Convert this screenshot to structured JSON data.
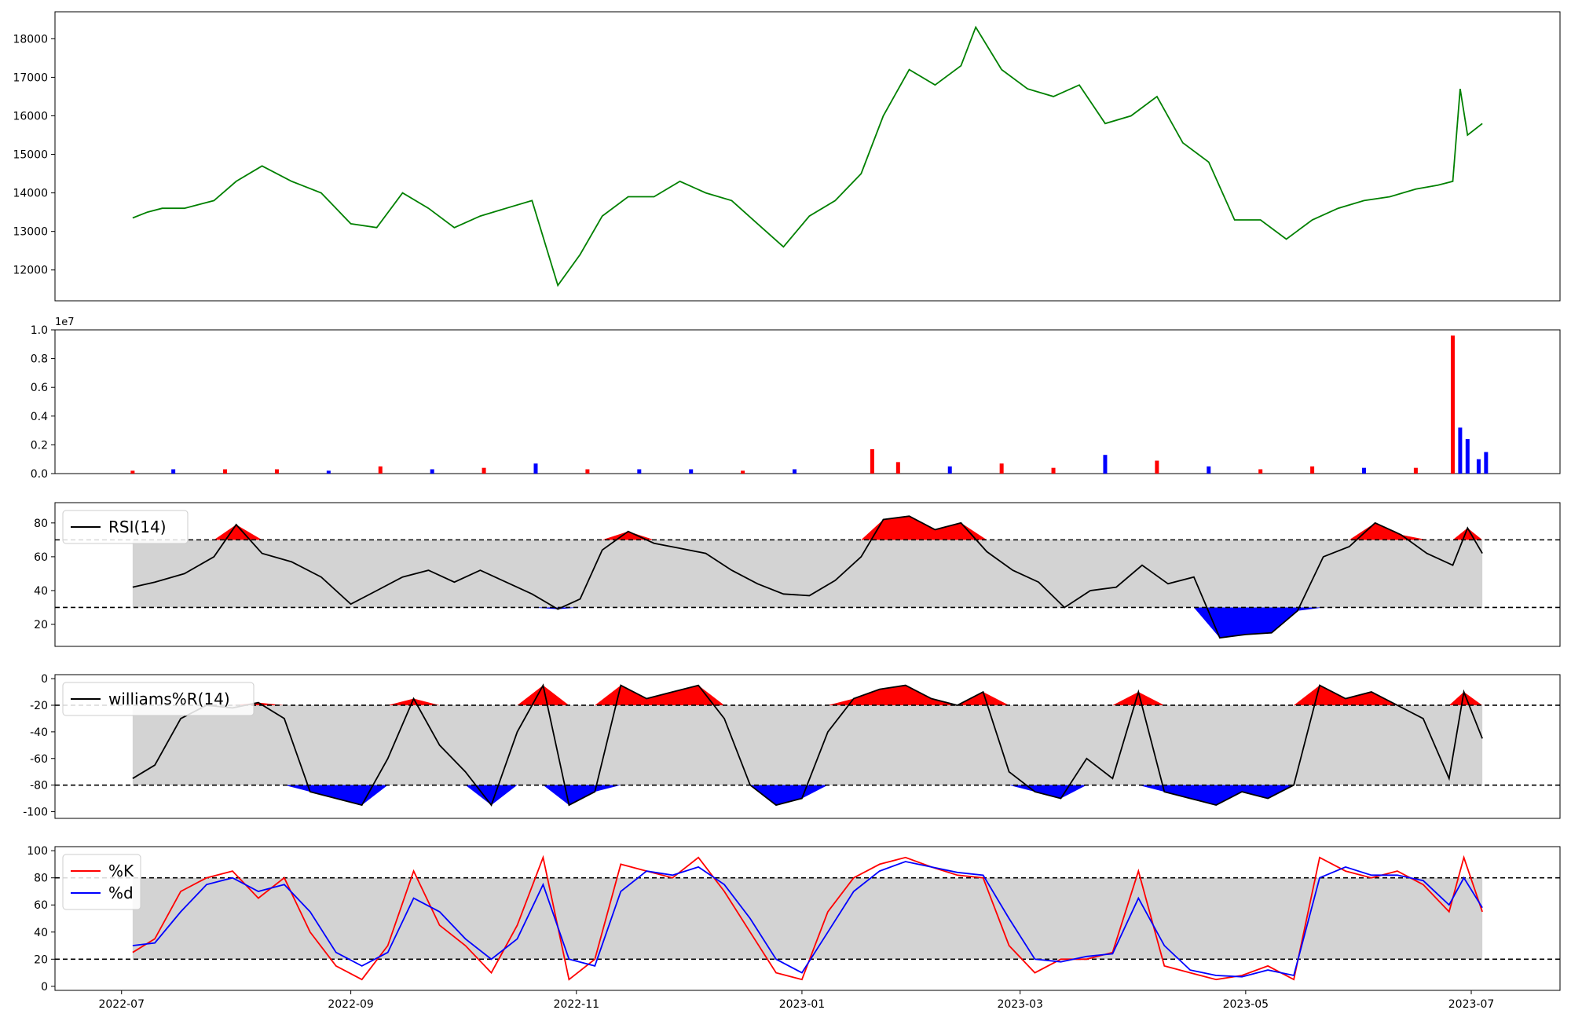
{
  "colors": {
    "price": "#008000",
    "vol_up": "#ff0000",
    "vol_down": "#0000ff",
    "band": "#d3d3d3",
    "overbought": "#ff0000",
    "oversold": "#0000ff",
    "line": "#000000",
    "k": "#ff0000",
    "d": "#0000ff"
  },
  "x_axis": {
    "ticks": [
      "2022-07",
      "2022-09",
      "2022-11",
      "2023-01",
      "2023-03",
      "2023-05",
      "2023-07"
    ]
  },
  "chart_data": [
    {
      "id": "price",
      "type": "line",
      "title": "",
      "xlabel": "",
      "ylabel": "",
      "ylim": [
        11200,
        18700
      ],
      "yticks": [
        12000,
        13000,
        14000,
        15000,
        16000,
        17000,
        18000
      ],
      "grid": false,
      "series": [
        {
          "x": [
            "2022-07-04",
            "2022-07-08",
            "2022-07-12",
            "2022-07-18",
            "2022-07-26",
            "2022-08-01",
            "2022-08-08",
            "2022-08-16",
            "2022-08-24",
            "2022-09-01",
            "2022-09-08",
            "2022-09-15",
            "2022-09-22",
            "2022-09-29",
            "2022-10-06",
            "2022-10-13",
            "2022-10-20",
            "2022-10-27",
            "2022-11-02",
            "2022-11-08",
            "2022-11-15",
            "2022-11-22",
            "2022-11-29",
            "2022-12-06",
            "2022-12-13",
            "2022-12-20",
            "2022-12-27",
            "2023-01-03",
            "2023-01-10",
            "2023-01-17",
            "2023-01-23",
            "2023-01-30",
            "2023-02-06",
            "2023-02-13",
            "2023-02-17",
            "2023-02-24",
            "2023-03-03",
            "2023-03-10",
            "2023-03-17",
            "2023-03-24",
            "2023-03-31",
            "2023-04-07",
            "2023-04-14",
            "2023-04-21",
            "2023-04-28",
            "2023-05-05",
            "2023-05-12",
            "2023-05-19",
            "2023-05-26",
            "2023-06-02",
            "2023-06-09",
            "2023-06-16",
            "2023-06-22",
            "2023-06-26",
            "2023-06-28",
            "2023-06-30",
            "2023-07-04"
          ],
          "values": [
            13350,
            13500,
            13600,
            13600,
            13800,
            14300,
            14700,
            14300,
            14000,
            13200,
            13100,
            14000,
            13600,
            13100,
            13400,
            13600,
            13800,
            11600,
            12400,
            13400,
            13900,
            13900,
            14300,
            14000,
            13800,
            13200,
            12600,
            13400,
            13800,
            14500,
            16000,
            17200,
            16800,
            17300,
            18300,
            17200,
            16700,
            16500,
            16800,
            15800,
            16000,
            16500,
            15300,
            14800,
            13300,
            13300,
            12800,
            13300,
            13600,
            13800,
            13900,
            14100,
            14200,
            14300,
            16700,
            15500,
            15800
          ]
        }
      ]
    },
    {
      "id": "volume",
      "type": "bar",
      "title": "",
      "xlabel": "",
      "ylabel": "",
      "offset_text": "1e7",
      "ylim": [
        0,
        1.0
      ],
      "yticks": [
        0.0,
        0.2,
        0.4,
        0.6,
        0.8,
        1.0
      ],
      "series": [
        {
          "name": "",
          "x": [
            "2022-07-04",
            "2022-07-15",
            "2022-07-29",
            "2022-08-12",
            "2022-08-26",
            "2022-09-09",
            "2022-09-23",
            "2022-10-07",
            "2022-10-21",
            "2022-11-04",
            "2022-11-18",
            "2022-12-02",
            "2022-12-16",
            "2022-12-30",
            "2023-01-20",
            "2023-01-27",
            "2023-02-10",
            "2023-02-24",
            "2023-03-10",
            "2023-03-24",
            "2023-04-07",
            "2023-04-21",
            "2023-05-05",
            "2023-05-19",
            "2023-06-02",
            "2023-06-16",
            "2023-06-26",
            "2023-06-28",
            "2023-06-30",
            "2023-07-03",
            "2023-07-05"
          ],
          "values": [
            0.02,
            0.03,
            0.03,
            0.03,
            0.02,
            0.05,
            0.03,
            0.04,
            0.07,
            0.03,
            0.03,
            0.03,
            0.02,
            0.03,
            0.17,
            0.08,
            0.05,
            0.07,
            0.04,
            0.13,
            0.09,
            0.05,
            0.03,
            0.05,
            0.04,
            0.04,
            0.96,
            0.32,
            0.24,
            0.1,
            0.15
          ],
          "up": [
            true,
            false,
            true,
            true,
            false,
            true,
            false,
            true,
            false,
            true,
            false,
            false,
            true,
            false,
            true,
            true,
            false,
            true,
            true,
            false,
            true,
            false,
            true,
            true,
            false,
            true,
            true,
            false,
            false,
            false,
            false
          ]
        }
      ]
    },
    {
      "id": "rsi",
      "type": "line",
      "title": "",
      "ylim": [
        7,
        92
      ],
      "yticks": [
        20,
        40,
        60,
        80
      ],
      "upper": 70,
      "lower": 30,
      "legend": [
        "RSI(14)"
      ],
      "legend_position": "upper-left",
      "series": [
        {
          "name": "RSI(14)",
          "x": [
            "2022-07-04",
            "2022-07-10",
            "2022-07-18",
            "2022-07-26",
            "2022-08-01",
            "2022-08-08",
            "2022-08-16",
            "2022-08-24",
            "2022-09-01",
            "2022-09-08",
            "2022-09-15",
            "2022-09-22",
            "2022-09-29",
            "2022-10-06",
            "2022-10-13",
            "2022-10-20",
            "2022-10-27",
            "2022-11-02",
            "2022-11-08",
            "2022-11-15",
            "2022-11-22",
            "2022-11-29",
            "2022-12-06",
            "2022-12-13",
            "2022-12-20",
            "2022-12-27",
            "2023-01-03",
            "2023-01-10",
            "2023-01-17",
            "2023-01-23",
            "2023-01-30",
            "2023-02-06",
            "2023-02-13",
            "2023-02-20",
            "2023-02-27",
            "2023-03-06",
            "2023-03-13",
            "2023-03-20",
            "2023-03-27",
            "2023-04-03",
            "2023-04-10",
            "2023-04-17",
            "2023-04-24",
            "2023-05-01",
            "2023-05-08",
            "2023-05-15",
            "2023-05-22",
            "2023-05-29",
            "2023-06-05",
            "2023-06-12",
            "2023-06-19",
            "2023-06-26",
            "2023-06-30",
            "2023-07-04"
          ],
          "values": [
            42,
            45,
            50,
            60,
            79,
            62,
            57,
            48,
            32,
            40,
            48,
            52,
            45,
            52,
            45,
            38,
            29,
            35,
            64,
            75,
            68,
            65,
            62,
            52,
            44,
            38,
            37,
            46,
            60,
            82,
            84,
            76,
            80,
            63,
            52,
            45,
            30,
            40,
            42,
            55,
            44,
            48,
            12,
            14,
            15,
            28,
            60,
            66,
            80,
            73,
            62,
            55,
            77,
            62
          ]
        }
      ]
    },
    {
      "id": "williams",
      "type": "line",
      "title": "",
      "ylim": [
        -105,
        3
      ],
      "yticks": [
        0,
        -20,
        -40,
        -60,
        -80,
        -100
      ],
      "upper": -20,
      "lower": -80,
      "legend": [
        "williams%R(14)"
      ],
      "legend_position": "upper-left",
      "series": [
        {
          "name": "williams%R(14)",
          "x": [
            "2022-07-04",
            "2022-07-10",
            "2022-07-17",
            "2022-07-24",
            "2022-07-31",
            "2022-08-07",
            "2022-08-14",
            "2022-08-21",
            "2022-08-28",
            "2022-09-04",
            "2022-09-11",
            "2022-09-18",
            "2022-09-25",
            "2022-10-02",
            "2022-10-09",
            "2022-10-16",
            "2022-10-23",
            "2022-10-30",
            "2022-11-06",
            "2022-11-13",
            "2022-11-20",
            "2022-11-27",
            "2022-12-04",
            "2022-12-11",
            "2022-12-18",
            "2022-12-25",
            "2023-01-01",
            "2023-01-08",
            "2023-01-15",
            "2023-01-22",
            "2023-01-29",
            "2023-02-05",
            "2023-02-12",
            "2023-02-19",
            "2023-02-26",
            "2023-03-05",
            "2023-03-12",
            "2023-03-19",
            "2023-03-26",
            "2023-04-02",
            "2023-04-09",
            "2023-04-16",
            "2023-04-23",
            "2023-04-30",
            "2023-05-07",
            "2023-05-14",
            "2023-05-21",
            "2023-05-28",
            "2023-06-04",
            "2023-06-11",
            "2023-06-18",
            "2023-06-25",
            "2023-06-29",
            "2023-07-04"
          ],
          "values": [
            -75,
            -65,
            -30,
            -20,
            -22,
            -18,
            -30,
            -85,
            -90,
            -95,
            -60,
            -15,
            -50,
            -70,
            -95,
            -40,
            -5,
            -95,
            -85,
            -5,
            -15,
            -10,
            -5,
            -30,
            -80,
            -95,
            -90,
            -40,
            -15,
            -8,
            -5,
            -15,
            -20,
            -10,
            -70,
            -85,
            -90,
            -60,
            -75,
            -10,
            -85,
            -90,
            -95,
            -85,
            -90,
            -80,
            -5,
            -15,
            -10,
            -20,
            -30,
            -75,
            -10,
            -45
          ]
        }
      ]
    },
    {
      "id": "stochastic",
      "type": "line",
      "title": "",
      "ylim": [
        -3,
        103
      ],
      "yticks": [
        0,
        20,
        40,
        60,
        80,
        100
      ],
      "upper": 80,
      "lower": 20,
      "legend": [
        "%K",
        "%d"
      ],
      "legend_position": "upper-left",
      "series": [
        {
          "name": "%K",
          "x": [
            "2022-07-04",
            "2022-07-10",
            "2022-07-17",
            "2022-07-24",
            "2022-07-31",
            "2022-08-07",
            "2022-08-14",
            "2022-08-21",
            "2022-08-28",
            "2022-09-04",
            "2022-09-11",
            "2022-09-18",
            "2022-09-25",
            "2022-10-02",
            "2022-10-09",
            "2022-10-16",
            "2022-10-23",
            "2022-10-30",
            "2022-11-06",
            "2022-11-13",
            "2022-11-20",
            "2022-11-27",
            "2022-12-04",
            "2022-12-11",
            "2022-12-18",
            "2022-12-25",
            "2023-01-01",
            "2023-01-08",
            "2023-01-15",
            "2023-01-22",
            "2023-01-29",
            "2023-02-05",
            "2023-02-12",
            "2023-02-19",
            "2023-02-26",
            "2023-03-05",
            "2023-03-12",
            "2023-03-19",
            "2023-03-26",
            "2023-04-02",
            "2023-04-09",
            "2023-04-16",
            "2023-04-23",
            "2023-04-30",
            "2023-05-07",
            "2023-05-14",
            "2023-05-21",
            "2023-05-28",
            "2023-06-04",
            "2023-06-11",
            "2023-06-18",
            "2023-06-25",
            "2023-06-29",
            "2023-07-04"
          ],
          "values": [
            25,
            35,
            70,
            80,
            85,
            65,
            80,
            40,
            15,
            5,
            30,
            85,
            45,
            30,
            10,
            45,
            95,
            5,
            20,
            90,
            85,
            80,
            95,
            70,
            40,
            10,
            5,
            55,
            80,
            90,
            95,
            88,
            82,
            80,
            30,
            10,
            20,
            20,
            25,
            85,
            15,
            10,
            5,
            8,
            15,
            5,
            95,
            85,
            80,
            85,
            75,
            55,
            95,
            55
          ]
        },
        {
          "name": "%d",
          "x": [
            "2022-07-04",
            "2022-07-10",
            "2022-07-17",
            "2022-07-24",
            "2022-07-31",
            "2022-08-07",
            "2022-08-14",
            "2022-08-21",
            "2022-08-28",
            "2022-09-04",
            "2022-09-11",
            "2022-09-18",
            "2022-09-25",
            "2022-10-02",
            "2022-10-09",
            "2022-10-16",
            "2022-10-23",
            "2022-10-30",
            "2022-11-06",
            "2022-11-13",
            "2022-11-20",
            "2022-11-27",
            "2022-12-04",
            "2022-12-11",
            "2022-12-18",
            "2022-12-25",
            "2023-01-01",
            "2023-01-08",
            "2023-01-15",
            "2023-01-22",
            "2023-01-29",
            "2023-02-05",
            "2023-02-12",
            "2023-02-19",
            "2023-02-26",
            "2023-03-05",
            "2023-03-12",
            "2023-03-19",
            "2023-03-26",
            "2023-04-02",
            "2023-04-09",
            "2023-04-16",
            "2023-04-23",
            "2023-04-30",
            "2023-05-07",
            "2023-05-14",
            "2023-05-21",
            "2023-05-28",
            "2023-06-04",
            "2023-06-11",
            "2023-06-18",
            "2023-06-25",
            "2023-06-29",
            "2023-07-04"
          ],
          "values": [
            30,
            32,
            55,
            75,
            80,
            70,
            75,
            55,
            25,
            15,
            25,
            65,
            55,
            35,
            20,
            35,
            75,
            20,
            15,
            70,
            85,
            82,
            88,
            75,
            50,
            20,
            10,
            40,
            70,
            85,
            92,
            88,
            84,
            82,
            50,
            20,
            18,
            22,
            24,
            65,
            30,
            12,
            8,
            7,
            12,
            8,
            80,
            88,
            82,
            82,
            78,
            60,
            80,
            58
          ]
        }
      ]
    }
  ]
}
